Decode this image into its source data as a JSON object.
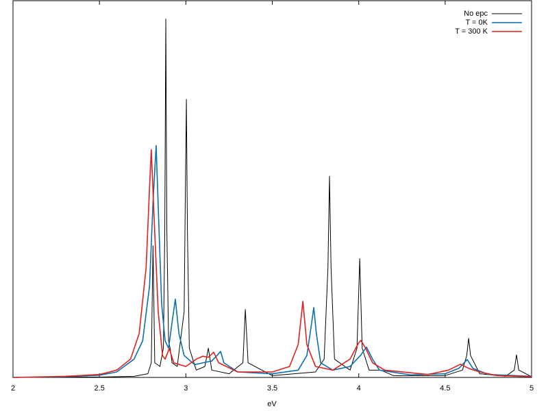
{
  "chart_data": {
    "type": "line",
    "xlabel": "eV",
    "xlim": [
      2,
      5
    ],
    "ylim": [
      0,
      103
    ],
    "xticks": [
      2,
      2.5,
      3,
      3.5,
      4,
      4.5,
      5
    ],
    "legend": "upper right",
    "series": [
      {
        "name": "No epc",
        "color": "#000000",
        "x": [
          2.0,
          2.5,
          2.7,
          2.78,
          2.8,
          2.81,
          2.82,
          2.85,
          2.87,
          2.878,
          2.884,
          2.89,
          2.9,
          2.91,
          2.92,
          2.95,
          2.99,
          2.997,
          3.003,
          3.009,
          3.02,
          3.06,
          3.11,
          3.13,
          3.15,
          3.25,
          3.33,
          3.344,
          3.36,
          3.5,
          3.75,
          3.8,
          3.822,
          3.831,
          3.84,
          3.86,
          3.95,
          3.99,
          4.006,
          4.02,
          4.06,
          4.128,
          4.2,
          4.5,
          4.6,
          4.625,
          4.636,
          4.647,
          4.7,
          4.85,
          4.9,
          4.913,
          4.926,
          5.0
        ],
        "values": [
          0,
          0.1,
          0.3,
          1,
          4,
          36,
          4,
          3,
          8,
          40,
          98,
          40,
          10,
          7.7,
          4,
          3,
          18,
          50,
          76,
          40,
          8,
          2,
          3,
          8,
          2,
          1,
          4,
          18.6,
          4,
          0.5,
          1.5,
          5,
          30,
          55,
          30,
          5,
          2,
          8,
          32.5,
          8,
          2,
          2,
          0.5,
          0.5,
          2,
          6,
          10.7,
          6,
          1,
          0.3,
          2,
          6.2,
          2,
          0.2
        ]
      },
      {
        "name": "T = 0K",
        "color": "#0a6fb0",
        "x": [
          2.0,
          2.3,
          2.5,
          2.6,
          2.7,
          2.75,
          2.79,
          2.81,
          2.828,
          2.845,
          2.86,
          2.88,
          2.9,
          2.92,
          2.939,
          2.96,
          2.99,
          3.05,
          3.1,
          3.15,
          3.18,
          3.201,
          3.22,
          3.3,
          3.5,
          3.65,
          3.7,
          3.725,
          3.74,
          3.755,
          3.78,
          3.85,
          3.95,
          4.01,
          4.045,
          4.08,
          4.12,
          4.3,
          4.5,
          4.58,
          4.628,
          4.66,
          4.75,
          5.0
        ],
        "values": [
          0,
          0.2,
          0.6,
          1.5,
          5,
          10,
          25,
          48,
          63.4,
          40,
          20,
          10,
          8,
          15,
          21.4,
          12,
          6,
          3.5,
          4,
          4.5,
          6,
          7.1,
          4,
          1.5,
          1,
          2,
          6,
          14,
          19.1,
          12,
          4,
          2,
          3,
          6,
          8.3,
          5,
          2,
          0.7,
          1,
          2.5,
          4.9,
          2.5,
          0.8,
          0.3
        ]
      },
      {
        "name": "T = 300 K",
        "color": "#e0201c",
        "x": [
          2.0,
          2.3,
          2.5,
          2.6,
          2.68,
          2.73,
          2.77,
          2.79,
          2.8,
          2.815,
          2.84,
          2.865,
          2.88,
          2.904,
          2.93,
          3.0,
          3.06,
          3.098,
          3.13,
          3.161,
          3.19,
          3.3,
          3.5,
          3.6,
          3.65,
          3.677,
          3.7,
          3.75,
          3.85,
          3.95,
          4.0,
          4.013,
          4.04,
          4.08,
          4.15,
          4.4,
          4.52,
          4.588,
          4.64,
          4.7,
          4.8,
          5.0
        ],
        "values": [
          0,
          0.3,
          0.8,
          2,
          5,
          12,
          30,
          52,
          62.3,
          45,
          18,
          6,
          5,
          7.9,
          4,
          3,
          5,
          5.8,
          5.5,
          6.9,
          4,
          1.5,
          1.5,
          3,
          9,
          20.8,
          9,
          3,
          2,
          5,
          9.5,
          10.1,
          8,
          4,
          2,
          0.8,
          2,
          3.6,
          2.4,
          1.5,
          0.5,
          0.2
        ]
      }
    ]
  }
}
